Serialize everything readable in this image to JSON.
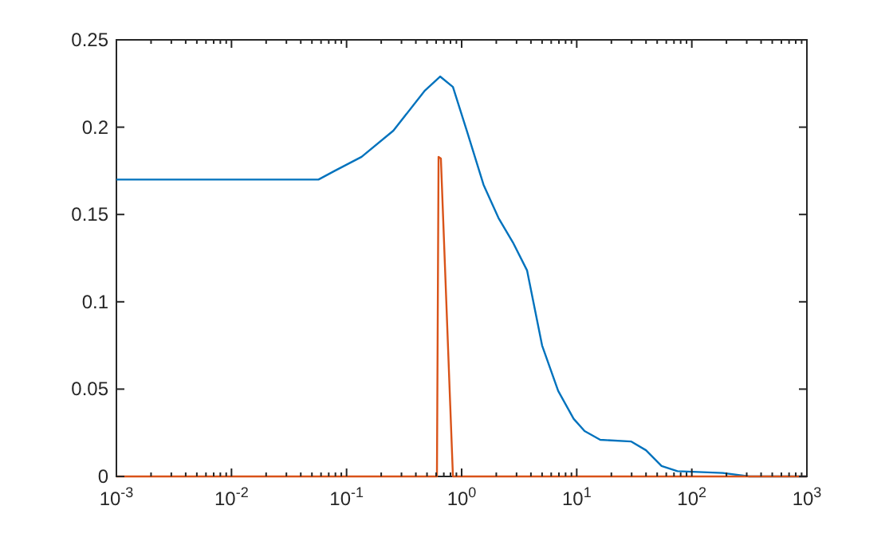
{
  "chart_data": {
    "type": "line",
    "log": "x",
    "grid": false,
    "line_style": "solid",
    "marker": "none",
    "xlim": [
      0.001,
      1000
    ],
    "ylim": [
      0,
      0.25
    ],
    "xticks": [
      {
        "value": 0.001,
        "label": "10$^{-3}$"
      },
      {
        "value": 0.002,
        "label": null
      },
      {
        "value": 0.003,
        "label": null
      },
      {
        "value": 0.004,
        "label": null
      },
      {
        "value": 0.005,
        "label": null
      },
      {
        "value": 0.006,
        "label": null
      },
      {
        "value": 0.007,
        "label": null
      },
      {
        "value": 0.008,
        "label": null
      },
      {
        "value": 0.009,
        "label": null
      },
      {
        "value": 0.01,
        "label": "10$^{-2}$"
      },
      {
        "value": 0.02,
        "label": null
      },
      {
        "value": 0.03,
        "label": null
      },
      {
        "value": 0.04,
        "label": null
      },
      {
        "value": 0.05,
        "label": null
      },
      {
        "value": 0.06,
        "label": null
      },
      {
        "value": 0.07,
        "label": null
      },
      {
        "value": 0.08,
        "label": null
      },
      {
        "value": 0.09,
        "label": null
      },
      {
        "value": 0.1,
        "label": "10$^{-1}$"
      },
      {
        "value": 0.2,
        "label": null
      },
      {
        "value": 0.3,
        "label": null
      },
      {
        "value": 0.4,
        "label": null
      },
      {
        "value": 0.5,
        "label": null
      },
      {
        "value": 0.6,
        "label": null
      },
      {
        "value": 0.7,
        "label": null
      },
      {
        "value": 0.8,
        "label": null
      },
      {
        "value": 0.9,
        "label": null
      },
      {
        "value": 1,
        "label": "10$^{0}$"
      },
      {
        "value": 2,
        "label": null
      },
      {
        "value": 3,
        "label": null
      },
      {
        "value": 4,
        "label": null
      },
      {
        "value": 5,
        "label": null
      },
      {
        "value": 6,
        "label": null
      },
      {
        "value": 7,
        "label": null
      },
      {
        "value": 8,
        "label": null
      },
      {
        "value": 9,
        "label": null
      },
      {
        "value": 10,
        "label": "10$^{1}$"
      },
      {
        "value": 20,
        "label": null
      },
      {
        "value": 30,
        "label": null
      },
      {
        "value": 40,
        "label": null
      },
      {
        "value": 50,
        "label": null
      },
      {
        "value": 60,
        "label": null
      },
      {
        "value": 70,
        "label": null
      },
      {
        "value": 80,
        "label": null
      },
      {
        "value": 90,
        "label": null
      },
      {
        "value": 100,
        "label": "10$^{2}$"
      },
      {
        "value": 200,
        "label": null
      },
      {
        "value": 300,
        "label": null
      },
      {
        "value": 400,
        "label": null
      },
      {
        "value": 500,
        "label": null
      },
      {
        "value": 600,
        "label": null
      },
      {
        "value": 700,
        "label": null
      },
      {
        "value": 800,
        "label": null
      },
      {
        "value": 900,
        "label": null
      },
      {
        "value": 1000,
        "label": "10$^{3}$"
      }
    ],
    "yticks": [
      0,
      0.05,
      0.1,
      0.15,
      0.2,
      0.25
    ],
    "series": [
      {
        "color": "#0072bd",
        "x": [
          0.001,
          0.01,
          0.057,
          0.079,
          0.135,
          0.255,
          0.48,
          0.65,
          0.84,
          1.12,
          1.55,
          2.09,
          2.79,
          3.7,
          5.0,
          6.9,
          9.4,
          11.7,
          16,
          29.8,
          40,
          54.6,
          75,
          186,
          316,
          1000
        ],
        "values": [
          0.17,
          0.17,
          0.17,
          0.175,
          0.183,
          0.198,
          0.221,
          0.229,
          0.223,
          0.197,
          0.167,
          0.148,
          0.134,
          0.118,
          0.075,
          0.049,
          0.033,
          0.026,
          0.021,
          0.02,
          0.015,
          0.006,
          0.003,
          0.002,
          0,
          0
        ]
      },
      {
        "color": "#d95319",
        "x": [
          0.001,
          0.61,
          0.63,
          0.66,
          0.84,
          1000
        ],
        "values": [
          0,
          0,
          0.183,
          0.182,
          0,
          0
        ]
      }
    ]
  }
}
